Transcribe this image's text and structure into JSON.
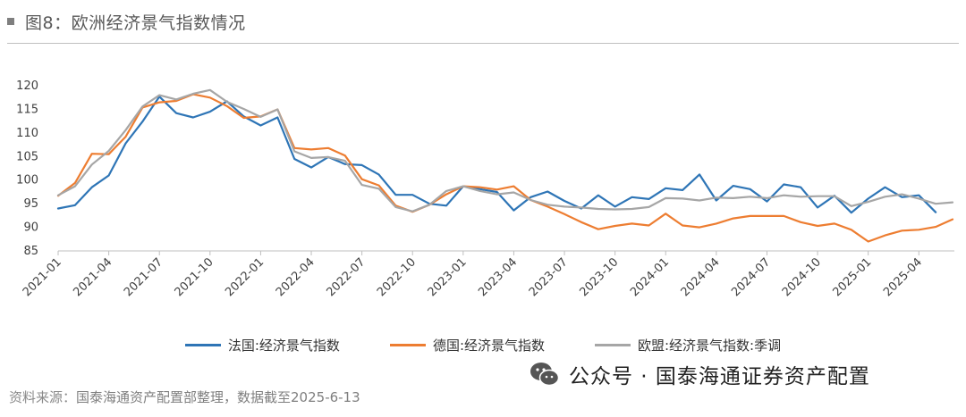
{
  "header": {
    "title": "图8：欧洲经济景气指数情况"
  },
  "chart_data": {
    "type": "line",
    "title": "图8：欧洲经济景气指数情况",
    "xlabel": "",
    "ylabel": "",
    "ylim": [
      85,
      120
    ],
    "yticks": [
      85,
      90,
      95,
      100,
      105,
      110,
      115,
      120
    ],
    "grid": false,
    "legend_position": "bottom",
    "x_labels": [
      "2021-01",
      "2021-04",
      "2021-07",
      "2021-10",
      "2022-01",
      "2022-04",
      "2022-07",
      "2022-10",
      "2023-01",
      "2023-04",
      "2023-07",
      "2023-10",
      "2024-01",
      "2024-04",
      "2024-07",
      "2024-10",
      "2025-01",
      "2025-04"
    ],
    "x_start": "2021-01",
    "series": [
      {
        "name": "法国:经济景气指数",
        "color": "#2e75b6",
        "values": [
          93.8,
          94.5,
          98.3,
          100.8,
          107.6,
          112.2,
          117.5,
          114,
          113.1,
          114.3,
          116.5,
          113.3,
          111.4,
          113.1,
          104.3,
          102.5,
          104.7,
          103.2,
          103,
          101,
          96.7,
          96.7,
          94.8,
          94.4,
          98.5,
          97.9,
          97.3,
          93.4,
          96.2,
          97.4,
          95.4,
          93.8,
          96.6,
          94.2,
          96.2,
          95.8,
          98.1,
          97.7,
          101,
          95.5,
          98.6,
          97.9,
          95.3,
          98.9,
          98.3,
          94,
          96.5,
          92.9,
          95.9,
          98.3,
          96.2,
          96.6,
          93
        ]
      },
      {
        "name": "德国:经济景气指数",
        "color": "#ed7d31",
        "values": [
          96.5,
          99.2,
          105.4,
          105.3,
          109,
          115.2,
          116.3,
          116.6,
          118,
          117.3,
          115.5,
          113,
          113.3,
          114.8,
          106.6,
          106.3,
          106.6,
          105,
          100,
          98.7,
          94.4,
          93.1,
          94.6,
          96.8,
          98.5,
          98.3,
          97.8,
          98.5,
          95.6,
          94.2,
          92.6,
          90.9,
          89.4,
          90.1,
          90.6,
          90.2,
          92.7,
          90.2,
          89.8,
          90.6,
          91.7,
          92.2,
          92.2,
          92.2,
          90.9,
          90.1,
          90.6,
          89.3,
          86.8,
          88.1,
          89.1,
          89.3,
          89.9,
          91.5
        ]
      },
      {
        "name": "欧盟:经济景气指数:季调",
        "color": "#a6a6a6",
        "values": [
          96.6,
          98.5,
          103.1,
          106,
          110.4,
          115.4,
          117.8,
          116.9,
          118.1,
          118.9,
          116.4,
          114.9,
          113.2,
          114.8,
          105.9,
          104.5,
          104.7,
          103.9,
          98.8,
          98,
          94.1,
          93.2,
          94.6,
          97.5,
          98.5,
          97.5,
          96.8,
          97.2,
          95.6,
          94.6,
          94.2,
          94,
          93.7,
          93.6,
          93.7,
          94.1,
          96,
          95.9,
          95.5,
          96.1,
          96,
          96.3,
          96,
          96.6,
          96.3,
          96.4,
          96.4,
          94.3,
          95.2,
          96.3,
          96.8,
          95.9,
          94.8,
          95.1
        ]
      }
    ]
  },
  "watermark": {
    "text": "公众号 · 国泰海通证券资产配置",
    "icon": "wechat-icon"
  },
  "footer": {
    "source_prefix": "资料来源：",
    "source_rest": "国泰海通资产配置部整理，数据截至2025-6-13"
  }
}
